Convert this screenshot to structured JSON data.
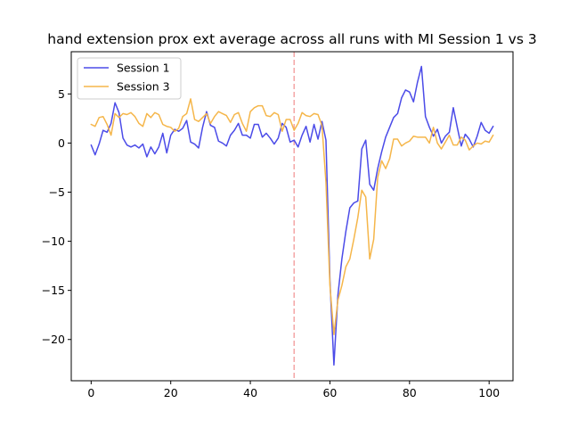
{
  "chart_data": {
    "type": "line",
    "title": "hand extension prox ext average across all runs with MI Session 1 vs 3",
    "xlabel": "",
    "ylabel": "",
    "xlim": [
      -5,
      106
    ],
    "ylim": [
      -24.2,
      9.3
    ],
    "xticks": [
      0,
      20,
      40,
      60,
      80,
      100
    ],
    "yticks": [
      5,
      0,
      -5,
      -10,
      -15,
      -20
    ],
    "grid": false,
    "legend_position": "upper-left",
    "vline": {
      "x": 51,
      "color": "#f4a6a6",
      "style": "dashed"
    },
    "series": [
      {
        "name": "Session 1",
        "color": "#4b4be8",
        "values": [
          -0.2,
          -1.2,
          -0.1,
          1.3,
          1.1,
          2.0,
          4.1,
          3.1,
          0.5,
          -0.2,
          -0.4,
          -0.2,
          -0.5,
          -0.1,
          -1.4,
          -0.4,
          -1.1,
          -0.4,
          1.0,
          -1.0,
          0.8,
          1.4,
          1.2,
          1.5,
          2.3,
          0.1,
          -0.1,
          -0.5,
          1.6,
          3.2,
          1.8,
          1.6,
          0.2,
          0.0,
          -0.3,
          0.8,
          1.3,
          2.0,
          0.8,
          0.8,
          0.5,
          1.9,
          1.9,
          0.6,
          1.0,
          0.5,
          -0.1,
          0.5,
          2.0,
          1.6,
          0.1,
          0.3,
          -0.4,
          0.8,
          1.7,
          0.1,
          1.9,
          0.4,
          2.2,
          0.3,
          -14.0,
          -22.6,
          -15.5,
          -11.8,
          -9.0,
          -6.6,
          -6.1,
          -5.9,
          -0.6,
          0.3,
          -4.2,
          -4.8,
          -2.6,
          -0.9,
          0.6,
          1.6,
          2.6,
          3.0,
          4.6,
          5.4,
          5.2,
          4.2,
          6.2,
          7.8,
          2.7,
          1.6,
          0.7,
          1.4,
          0.0,
          0.7,
          1.1,
          3.6,
          1.6,
          -0.3,
          0.9,
          0.4,
          -0.4,
          0.7,
          2.1,
          1.3,
          1.0,
          1.7
        ]
      },
      {
        "name": "Session 3",
        "color": "#f5b64a",
        "values": [
          1.9,
          1.7,
          2.6,
          2.7,
          1.9,
          0.8,
          3.0,
          2.6,
          3.0,
          2.9,
          3.1,
          2.7,
          2.0,
          1.7,
          3.0,
          2.6,
          3.1,
          2.9,
          1.9,
          1.7,
          1.6,
          1.2,
          1.5,
          2.7,
          3.0,
          4.5,
          2.4,
          2.2,
          2.6,
          3.0,
          2.0,
          2.7,
          3.2,
          3.0,
          2.8,
          2.1,
          2.9,
          3.1,
          2.0,
          1.2,
          3.2,
          3.6,
          3.8,
          3.8,
          2.8,
          2.7,
          3.1,
          2.9,
          1.2,
          2.4,
          2.4,
          1.3,
          2.0,
          3.1,
          2.8,
          2.7,
          3.0,
          2.9,
          1.8,
          -4.0,
          -14.5,
          -19.5,
          -16.0,
          -14.5,
          -12.6,
          -11.8,
          -9.8,
          -7.6,
          -4.8,
          -5.5,
          -11.8,
          -9.8,
          -3.5,
          -1.8,
          -2.6,
          -1.6,
          0.4,
          0.4,
          -0.3,
          0.0,
          0.2,
          0.7,
          0.6,
          0.6,
          0.6,
          0.0,
          1.6,
          0.0,
          -0.6,
          0.1,
          0.8,
          -0.2,
          -0.2,
          0.6,
          0.3,
          -0.7,
          -0.3,
          0.0,
          -0.1,
          0.2,
          0.1,
          0.8
        ]
      }
    ]
  }
}
